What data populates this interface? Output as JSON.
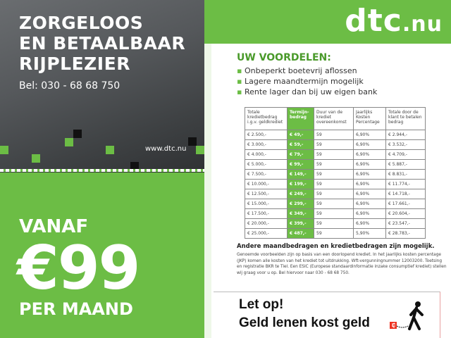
{
  "left": {
    "headline": [
      "ZORGELOOS",
      "EN BETAALBAAR",
      "RIJPLEZIER"
    ],
    "phone": "Bel: 030 - 68 68 750",
    "website": "www.dtc.nu",
    "vanaf": "VANAF",
    "price": "€99",
    "per_maand": "PER MAAND"
  },
  "right": {
    "logo_main": "dtc",
    "logo_suffix": ".nu",
    "advantages_title": "UW VOORDELEN:",
    "advantages": [
      "Onbeperkt boetevrij aflossen",
      "Lagere maandtermijn mogelijk",
      "Rente lager dan bij uw eigen bank"
    ],
    "table": {
      "headers": [
        "Totale kredietbedrag i.g.v. geldkrediet",
        "Termijn-bedrag",
        "Duur van de krediet overeenkomst",
        "Jaarlijks Kosten Percentage",
        "Totale door de klant te betalen bedrag"
      ],
      "rows": [
        [
          "€  2.500,-",
          "€  49,-",
          "59",
          "6,90%",
          "€  2.944,-"
        ],
        [
          "€  3.000,-",
          "€  59,-",
          "59",
          "6,90%",
          "€  3.532,-"
        ],
        [
          "€  4.000,-",
          "€  79,-",
          "59",
          "6,90%",
          "€  4.709,-"
        ],
        [
          "€  5.000,-",
          "€  99,-",
          "59",
          "6,90%",
          "€  5.887,-"
        ],
        [
          "€  7.500,-",
          "€ 149,-",
          "59",
          "6,90%",
          "€  8.831,-"
        ],
        [
          "€ 10.000,-",
          "€ 199,-",
          "59",
          "6,90%",
          "€ 11.774,-"
        ],
        [
          "€ 12.500,-",
          "€ 249,-",
          "59",
          "6,90%",
          "€ 14.718,-"
        ],
        [
          "€ 15.000,-",
          "€ 299,-",
          "59",
          "6,90%",
          "€ 17.661,-"
        ],
        [
          "€ 17.500,-",
          "€ 349,-",
          "59",
          "6,90%",
          "€ 20.604,-"
        ],
        [
          "€ 20.000,-",
          "€ 399,-",
          "59",
          "6,90%",
          "€ 23.547,-"
        ],
        [
          "€ 25.000,-",
          "€ 487,-",
          "59",
          "5,90%",
          "€ 28.783,-"
        ]
      ]
    },
    "other_amounts": "Andere maandbedragen en kredietbedragen zijn mogelijk.",
    "legal": "Genoemde voorbeelden zijn op basis van een doorlopend krediet. In het jaarlijks kosten percentage (JKP) komen alle kosten van het krediet tot uitdrukking. Wft-vergunningnummer 12003200. Toetsing en registratie BKR te Tiel. Een ESIC (Europese standaardinformatie inzake consumptief krediet) stellen wij graag voor u op. Bel hiervoor naar 030 - 68 68 750.",
    "warning_line1": "Let op!",
    "warning_line2": "Geld lenen kost geld",
    "warning_icon": "walking-man-with-euro-ball-icon"
  },
  "colors": {
    "brand_green": "#6cbd45",
    "photo_grey": "#55585b"
  }
}
